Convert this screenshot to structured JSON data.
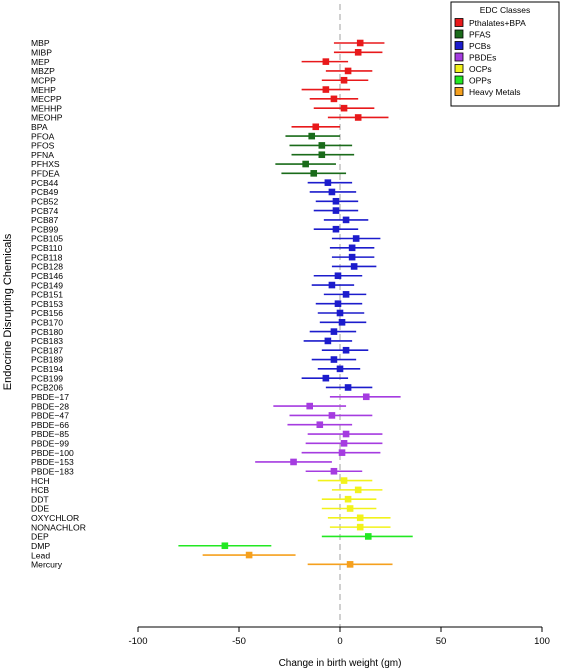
{
  "chart_data": {
    "type": "scatter",
    "title": "",
    "xlabel": "Change in birth weight (gm)",
    "ylabel": "Endocrine Disrupting Chemicals",
    "xlim": [
      -100,
      100
    ],
    "x_ticks": [
      "-100",
      "-50",
      "0",
      "50",
      "100"
    ],
    "x_tick_values": [
      -100,
      -50,
      0,
      50,
      100
    ],
    "reference_line": 0,
    "grid": false,
    "legend": {
      "title": "EDC Classes",
      "placement": "top-right",
      "entries": [
        {
          "name": "Pthalates+BPA",
          "color": "#e8191b"
        },
        {
          "name": "PFAS",
          "color": "#1a6b1a"
        },
        {
          "name": "PCBs",
          "color": "#1c1ccc"
        },
        {
          "name": "PBDEs",
          "color": "#a53ce0"
        },
        {
          "name": "OCPs",
          "color": "#f2f21a"
        },
        {
          "name": "OPPs",
          "color": "#22e822"
        },
        {
          "name": "Heavy Metals",
          "color": "#f5a01e"
        }
      ]
    },
    "points": [
      {
        "label": "MBP",
        "class": 0,
        "estimate": 10,
        "lower": -3,
        "upper": 22
      },
      {
        "label": "MIBP",
        "class": 0,
        "estimate": 9,
        "lower": -3,
        "upper": 21
      },
      {
        "label": "MEP",
        "class": 0,
        "estimate": -7,
        "lower": -19,
        "upper": 4
      },
      {
        "label": "MBZP",
        "class": 0,
        "estimate": 4,
        "lower": -7,
        "upper": 16
      },
      {
        "label": "MCPP",
        "class": 0,
        "estimate": 2,
        "lower": -9,
        "upper": 14
      },
      {
        "label": "MEHP",
        "class": 0,
        "estimate": -7,
        "lower": -19,
        "upper": 5
      },
      {
        "label": "MECPP",
        "class": 0,
        "estimate": -3,
        "lower": -15,
        "upper": 9
      },
      {
        "label": "MEHHP",
        "class": 0,
        "estimate": 2,
        "lower": -13,
        "upper": 17
      },
      {
        "label": "MEOHP",
        "class": 0,
        "estimate": 9,
        "lower": -6,
        "upper": 24
      },
      {
        "label": "BPA",
        "class": 0,
        "estimate": -12,
        "lower": -24,
        "upper": 0
      },
      {
        "label": "PFOA",
        "class": 1,
        "estimate": -14,
        "lower": -27,
        "upper": 0
      },
      {
        "label": "PFOS",
        "class": 1,
        "estimate": -9,
        "lower": -25,
        "upper": 6
      },
      {
        "label": "PFNA",
        "class": 1,
        "estimate": -9,
        "lower": -24,
        "upper": 7
      },
      {
        "label": "PFHXS",
        "class": 1,
        "estimate": -17,
        "lower": -32,
        "upper": -2
      },
      {
        "label": "PFDEA",
        "class": 1,
        "estimate": -13,
        "lower": -29,
        "upper": 3
      },
      {
        "label": "PCB44",
        "class": 2,
        "estimate": -6,
        "lower": -16,
        "upper": 6
      },
      {
        "label": "PCB49",
        "class": 2,
        "estimate": -4,
        "lower": -15,
        "upper": 8
      },
      {
        "label": "PCB52",
        "class": 2,
        "estimate": -2,
        "lower": -12,
        "upper": 9
      },
      {
        "label": "PCB74",
        "class": 2,
        "estimate": -2,
        "lower": -13,
        "upper": 9
      },
      {
        "label": "PCB87",
        "class": 2,
        "estimate": 3,
        "lower": -8,
        "upper": 14
      },
      {
        "label": "PCB99",
        "class": 2,
        "estimate": -2,
        "lower": -13,
        "upper": 9
      },
      {
        "label": "PCB105",
        "class": 2,
        "estimate": 8,
        "lower": -4,
        "upper": 20
      },
      {
        "label": "PCB110",
        "class": 2,
        "estimate": 6,
        "lower": -5,
        "upper": 17
      },
      {
        "label": "PCB118",
        "class": 2,
        "estimate": 6,
        "lower": -4,
        "upper": 17
      },
      {
        "label": "PCB128",
        "class": 2,
        "estimate": 7,
        "lower": -4,
        "upper": 18
      },
      {
        "label": "PCB146",
        "class": 2,
        "estimate": -1,
        "lower": -13,
        "upper": 11
      },
      {
        "label": "PCB149",
        "class": 2,
        "estimate": -4,
        "lower": -14,
        "upper": 7
      },
      {
        "label": "PCB151",
        "class": 2,
        "estimate": 3,
        "lower": -8,
        "upper": 13
      },
      {
        "label": "PCB153",
        "class": 2,
        "estimate": -1,
        "lower": -12,
        "upper": 11
      },
      {
        "label": "PCB156",
        "class": 2,
        "estimate": 0,
        "lower": -11,
        "upper": 12
      },
      {
        "label": "PCB170",
        "class": 2,
        "estimate": 1,
        "lower": -10,
        "upper": 13
      },
      {
        "label": "PCB180",
        "class": 2,
        "estimate": -3,
        "lower": -15,
        "upper": 8
      },
      {
        "label": "PCB183",
        "class": 2,
        "estimate": -6,
        "lower": -18,
        "upper": 6
      },
      {
        "label": "PCB187",
        "class": 2,
        "estimate": 3,
        "lower": -9,
        "upper": 14
      },
      {
        "label": "PCB189",
        "class": 2,
        "estimate": -3,
        "lower": -14,
        "upper": 8
      },
      {
        "label": "PCB194",
        "class": 2,
        "estimate": 0,
        "lower": -11,
        "upper": 10
      },
      {
        "label": "PCB199",
        "class": 2,
        "estimate": -7,
        "lower": -19,
        "upper": 4
      },
      {
        "label": "PCB206",
        "class": 2,
        "estimate": 4,
        "lower": -7,
        "upper": 16
      },
      {
        "label": "PBDE−17",
        "class": 3,
        "estimate": 13,
        "lower": -5,
        "upper": 30
      },
      {
        "label": "PBDE−28",
        "class": 3,
        "estimate": -15,
        "lower": -33,
        "upper": 3
      },
      {
        "label": "PBDE−47",
        "class": 3,
        "estimate": -4,
        "lower": -25,
        "upper": 16
      },
      {
        "label": "PBDE−66",
        "class": 3,
        "estimate": -10,
        "lower": -26,
        "upper": 6
      },
      {
        "label": "PBDE−85",
        "class": 3,
        "estimate": 3,
        "lower": -16,
        "upper": 21
      },
      {
        "label": "PBDE−99",
        "class": 3,
        "estimate": 2,
        "lower": -17,
        "upper": 21
      },
      {
        "label": "PBDE−100",
        "class": 3,
        "estimate": 1,
        "lower": -19,
        "upper": 20
      },
      {
        "label": "PBDE−153",
        "class": 3,
        "estimate": -23,
        "lower": -42,
        "upper": -4
      },
      {
        "label": "PBDE−183",
        "class": 3,
        "estimate": -3,
        "lower": -17,
        "upper": 11
      },
      {
        "label": "HCH",
        "class": 4,
        "estimate": 2,
        "lower": -11,
        "upper": 16
      },
      {
        "label": "HCB",
        "class": 4,
        "estimate": 9,
        "lower": -4,
        "upper": 21
      },
      {
        "label": "DDT",
        "class": 4,
        "estimate": 4,
        "lower": -9,
        "upper": 18
      },
      {
        "label": "DDE",
        "class": 4,
        "estimate": 5,
        "lower": -9,
        "upper": 18
      },
      {
        "label": "OXYCHLOR",
        "class": 4,
        "estimate": 10,
        "lower": -6,
        "upper": 25
      },
      {
        "label": "NONACHLOR",
        "class": 4,
        "estimate": 10,
        "lower": -5,
        "upper": 25
      },
      {
        "label": "DEP",
        "class": 5,
        "estimate": 14,
        "lower": -9,
        "upper": 36
      },
      {
        "label": "DMP",
        "class": 5,
        "estimate": -57,
        "lower": -80,
        "upper": -34
      },
      {
        "label": "Lead",
        "class": 6,
        "estimate": -45,
        "lower": -68,
        "upper": -22
      },
      {
        "label": "Mercury",
        "class": 6,
        "estimate": 5,
        "lower": -16,
        "upper": 26
      }
    ]
  }
}
